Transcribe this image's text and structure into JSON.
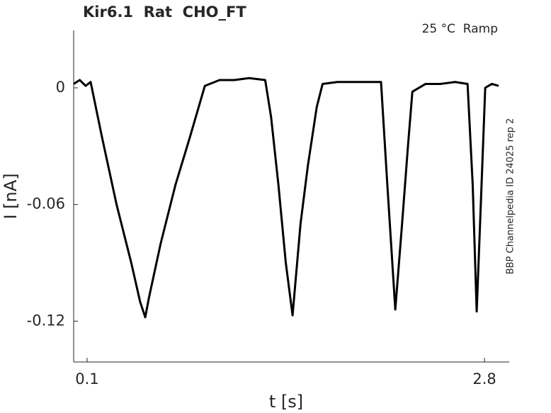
{
  "chart_data": {
    "type": "line",
    "title": "Kir6.1  Rat  CHO_FT",
    "annotation": "25 °C  Ramp",
    "side_note": "BBP Channelpedia ID 24025 rep 2",
    "xlabel": "t [s]",
    "ylabel": "I [nA]",
    "x": [
      0.009,
      0.05,
      0.09,
      0.124,
      0.2,
      0.3,
      0.4,
      0.46,
      0.495,
      0.52,
      0.6,
      0.7,
      0.8,
      0.9,
      1.0,
      1.1,
      1.2,
      1.31,
      1.35,
      1.4,
      1.45,
      1.496,
      1.55,
      1.6,
      1.66,
      1.7,
      1.8,
      1.9,
      2.0,
      2.097,
      2.14,
      2.194,
      2.24,
      2.28,
      2.31,
      2.4,
      2.5,
      2.6,
      2.685,
      2.72,
      2.747,
      2.775,
      2.805,
      2.85,
      2.896
    ],
    "values": [
      0.002,
      0.004,
      0.001,
      0.003,
      -0.025,
      -0.06,
      -0.09,
      -0.11,
      -0.118,
      -0.108,
      -0.08,
      -0.05,
      -0.025,
      0.001,
      0.004,
      0.004,
      0.005,
      0.004,
      -0.015,
      -0.05,
      -0.09,
      -0.117,
      -0.07,
      -0.04,
      -0.01,
      0.002,
      0.003,
      0.003,
      0.003,
      0.003,
      -0.05,
      -0.114,
      -0.07,
      -0.03,
      -0.002,
      0.002,
      0.002,
      0.003,
      0.002,
      -0.05,
      -0.115,
      -0.06,
      0.0,
      0.002,
      0.001
    ],
    "color": "#000000",
    "xlim": [
      0.0086,
      2.968
    ],
    "ylim": [
      -0.141,
      0.0295
    ],
    "xticks": [
      0.1,
      2.8
    ],
    "yticks": [
      -0.12,
      -0.06,
      0
    ],
    "grid": false
  }
}
